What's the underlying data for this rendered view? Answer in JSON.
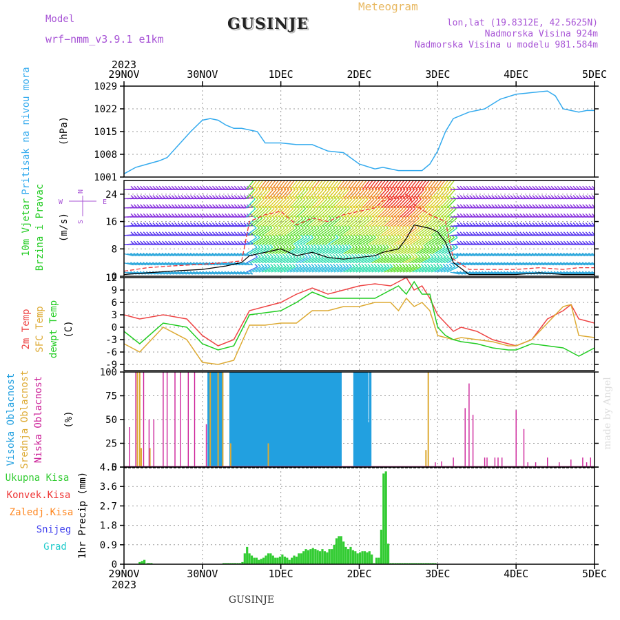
{
  "header": {
    "model_label": "Model",
    "model_name": "wrf−nmm_v3.9.1  e1km",
    "location_title": "GUSINJE",
    "meteogram_label": "Meteogram",
    "lonlat": "lon,lat (19.8312E, 42.5625N)",
    "altitude": "Nadmorska Visina 924m",
    "model_altitude": "Nadmorska Visina u modelu 981.584m",
    "footer_title": "GUSINJE",
    "credit": "made by Angel",
    "year": "2023",
    "x_tick_labels": [
      "29NOV",
      "30NOV",
      "1DEC",
      "2DEC",
      "3DEC",
      "4DEC",
      "5DEC"
    ]
  },
  "colors": {
    "pressure": "#33aaee",
    "temp2m": "#ee4444",
    "sfc_temp": "#ddaa33",
    "dewpt": "#22cc22",
    "high_cloud": "#22a0e0",
    "mid_cloud": "#ddaa33",
    "low_cloud": "#cc2299",
    "precip_total": "#33cc33",
    "conv": "#ee3333",
    "frozen": "#ff8822",
    "snow": "#4444ee",
    "hail": "#22cccc",
    "title_purple": "#a855d6",
    "meteogram": "#e8b860"
  },
  "chart_data": [
    {
      "type": "line",
      "panel": "pressure",
      "ylabel_1": "Pritisak na nivou mora",
      "ylabel_2": "(hPa)",
      "yticks": [
        1001,
        1008,
        1015,
        1022,
        1029
      ],
      "ylim": [
        1001,
        1029
      ],
      "xlim_days": [
        0,
        6
      ],
      "grid": true,
      "series": [
        {
          "x": [
            0,
            0.15,
            0.3,
            0.45,
            0.55,
            0.7,
            0.85,
            1.0,
            1.1,
            1.2,
            1.3,
            1.4,
            1.5,
            1.6,
            1.7,
            1.8,
            1.9,
            2.0,
            2.2,
            2.4,
            2.6,
            2.8,
            3.0,
            3.2,
            3.3,
            3.5,
            3.8,
            3.9,
            4.0,
            4.1,
            4.2,
            4.4,
            4.6,
            4.8,
            5.0,
            5.2,
            5.4,
            5.5,
            5.6,
            5.8,
            5.9,
            6.0
          ],
          "y": [
            1002,
            1004,
            1005,
            1006,
            1007,
            1011,
            1015,
            1018.5,
            1019,
            1018.5,
            1017,
            1016,
            1016,
            1015.5,
            1015,
            1011.5,
            1011.5,
            1011.5,
            1011,
            1011,
            1009,
            1008.5,
            1005,
            1003.5,
            1004,
            1003,
            1003,
            1005,
            1009,
            1015,
            1019,
            1021,
            1022,
            1025,
            1026.5,
            1027,
            1027.5,
            1026,
            1022,
            1021,
            1021.5,
            1021.5
          ]
        }
      ]
    },
    {
      "type": "line",
      "panel": "wind",
      "ylabel_1": "10m Vjetar",
      "ylabel_2": "Brzina i Pravac",
      "ylabel_3": "(m/s)",
      "compass": [
        "N",
        "E",
        "S",
        "W"
      ],
      "yticks": [
        0,
        8,
        16,
        24
      ],
      "ylim": [
        0,
        28
      ],
      "grid": true,
      "series": [
        {
          "name": "speed",
          "x": [
            0,
            0.3,
            0.6,
            1.0,
            1.3,
            1.5,
            1.6,
            1.8,
            2.0,
            2.2,
            2.4,
            2.6,
            2.8,
            3.0,
            3.2,
            3.3,
            3.5,
            3.6,
            3.7,
            3.9,
            4.0,
            4.1,
            4.2,
            4.4,
            4.6,
            4.8,
            5.0,
            5.3,
            5.6,
            5.8,
            6.0
          ],
          "y": [
            0.5,
            1,
            1.5,
            2,
            3,
            4,
            6,
            7,
            8,
            6,
            7,
            5.5,
            5,
            5.5,
            6,
            7,
            8,
            11,
            15,
            14,
            13,
            10,
            4,
            0.5,
            0.5,
            0.5,
            0.5,
            1,
            0.5,
            0.5,
            0.5
          ]
        },
        {
          "name": "gust",
          "x": [
            0,
            0.3,
            0.6,
            1.0,
            1.3,
            1.5,
            1.6,
            1.8,
            2.0,
            2.2,
            2.4,
            2.6,
            2.8,
            3.0,
            3.2,
            3.3,
            3.5,
            3.6,
            3.7,
            3.9,
            4.0,
            4.1,
            4.2,
            4.4,
            4.6,
            4.8,
            5.0,
            5.3,
            5.6,
            5.8,
            6.0
          ],
          "y": [
            1.5,
            2.5,
            3,
            3.5,
            4,
            4.5,
            16,
            18,
            19,
            15,
            17,
            16,
            18,
            19,
            20,
            22,
            23,
            24,
            21,
            18,
            17,
            16,
            5,
            2,
            2,
            2,
            2,
            2.5,
            2,
            2.5,
            2.5
          ]
        }
      ]
    },
    {
      "type": "line",
      "panel": "temperature",
      "ylabel_1": "2m Temp",
      "ylabel_2": "SFC Temp",
      "ylabel_3": "dewpt Temp",
      "ylabel_4": "(C)",
      "yticks": [
        -9,
        -6,
        -3,
        0,
        3,
        6,
        9,
        12
      ],
      "ylim": [
        -10.5,
        12
      ],
      "grid": true,
      "series": [
        {
          "name": "2m Temp",
          "x": [
            0,
            0.2,
            0.5,
            0.8,
            1.0,
            1.2,
            1.4,
            1.6,
            1.8,
            2.0,
            2.2,
            2.4,
            2.6,
            2.8,
            3.0,
            3.2,
            3.4,
            3.5,
            3.6,
            3.7,
            3.8,
            3.9,
            4.0,
            4.1,
            4.2,
            4.3,
            4.5,
            4.7,
            4.9,
            5.0,
            5.2,
            5.4,
            5.6,
            5.7,
            5.8,
            6.0
          ],
          "y": [
            3,
            2,
            3,
            2,
            -2,
            -4.5,
            -3,
            4,
            5,
            6,
            8,
            9.5,
            8,
            9,
            10,
            10.5,
            10,
            11,
            12,
            9,
            10,
            7,
            3,
            1,
            -1,
            0,
            -1,
            -3,
            -4,
            -4.5,
            -3,
            2,
            4,
            5.5,
            2,
            1
          ]
        },
        {
          "name": "SFC Temp",
          "x": [
            0,
            0.2,
            0.5,
            0.8,
            1.0,
            1.2,
            1.4,
            1.6,
            1.8,
            2.0,
            2.2,
            2.4,
            2.6,
            2.8,
            3.0,
            3.2,
            3.4,
            3.5,
            3.6,
            3.7,
            3.8,
            3.9,
            4.0,
            4.1,
            4.2,
            4.3,
            4.5,
            4.7,
            4.9,
            5.0,
            5.2,
            5.4,
            5.6,
            5.7,
            5.8,
            6.0
          ],
          "y": [
            -4,
            -6,
            0,
            -3,
            -8.5,
            -9,
            -8,
            0.5,
            0.5,
            1,
            1,
            4,
            4,
            5,
            5,
            6,
            6,
            4,
            7,
            5,
            6,
            4,
            -2,
            -2.5,
            -3,
            -2.5,
            -3,
            -3.5,
            -4.5,
            -4.5,
            -3,
            1,
            5,
            5.5,
            -2,
            -2.5
          ]
        },
        {
          "name": "dewpt Temp",
          "x": [
            0,
            0.2,
            0.5,
            0.8,
            1.0,
            1.2,
            1.4,
            1.6,
            1.8,
            2.0,
            2.2,
            2.4,
            2.6,
            2.8,
            3.0,
            3.2,
            3.4,
            3.5,
            3.6,
            3.7,
            3.8,
            3.9,
            4.0,
            4.1,
            4.2,
            4.3,
            4.5,
            4.7,
            4.9,
            5.0,
            5.2,
            5.4,
            5.6,
            5.7,
            5.8,
            6.0
          ],
          "y": [
            -1,
            -4,
            1,
            0,
            -4,
            -5.5,
            -4.5,
            3,
            3.5,
            4,
            6,
            8.5,
            7,
            7,
            7,
            7,
            9,
            10,
            8,
            11,
            8,
            8,
            0,
            -2,
            -3,
            -3.5,
            -4,
            -5,
            -5.5,
            -5.5,
            -4,
            -4.5,
            -5,
            -6,
            -7,
            -5
          ]
        }
      ]
    },
    {
      "type": "bar",
      "panel": "clouds",
      "ylabel_1": "Visoka Oblacnost",
      "ylabel_2": "Srednja Oblacnost",
      "ylabel_3": "Niska Oblacnost",
      "ylabel_4": "(%)",
      "yticks": [
        0,
        25,
        50,
        75,
        100
      ],
      "ylim": [
        0,
        100
      ],
      "grid": true,
      "series": [
        {
          "name": "Visoka Oblacnost",
          "x": [
            1.08,
            1.1,
            1.12,
            1.14,
            1.16,
            1.18,
            1.2,
            1.22,
            1.24,
            1.36,
            1.38,
            1.4,
            1.42,
            1.44,
            1.46,
            1.48,
            1.5,
            1.52,
            1.54,
            1.56,
            1.58,
            1.6,
            1.62,
            1.64,
            1.66,
            1.68,
            1.7,
            1.72,
            1.74,
            1.76,
            1.78,
            1.8,
            1.82,
            1.84,
            1.86,
            1.88,
            1.9,
            1.92,
            1.94,
            1.96,
            1.98,
            2.0,
            2.02,
            2.04,
            2.06,
            2.08,
            2.1,
            2.12,
            2.14,
            2.16,
            2.18,
            2.2,
            2.22,
            2.24,
            2.26,
            2.28,
            2.3,
            2.32,
            2.34,
            2.36,
            2.38,
            2.4,
            2.42,
            2.44,
            2.46,
            2.48,
            2.5,
            2.52,
            2.54,
            2.56,
            2.58,
            2.6,
            2.62,
            2.64,
            2.66,
            2.68,
            2.7,
            2.72,
            2.74,
            2.76,
            2.94,
            2.96,
            2.98,
            3.0,
            3.02,
            3.04,
            3.06,
            3.08,
            3.1,
            3.12,
            3.14
          ],
          "values": [
            100,
            100,
            100,
            100,
            100,
            100,
            100,
            100,
            100,
            100,
            100,
            100,
            100,
            100,
            100,
            100,
            100,
            100,
            100,
            100,
            100,
            100,
            100,
            100,
            100,
            100,
            100,
            100,
            100,
            100,
            100,
            100,
            100,
            100,
            100,
            100,
            100,
            100,
            100,
            100,
            100,
            100,
            100,
            100,
            100,
            100,
            100,
            100,
            100,
            100,
            100,
            100,
            100,
            100,
            100,
            100,
            100,
            100,
            100,
            100,
            100,
            100,
            100,
            100,
            100,
            100,
            100,
            100,
            100,
            100,
            100,
            100,
            100,
            100,
            100,
            100,
            100,
            100,
            100,
            100,
            100,
            100,
            100,
            100,
            100,
            100,
            100,
            100,
            100,
            47,
            100
          ]
        },
        {
          "name": "Srednja Oblacnost",
          "x": [
            0.17,
            0.2,
            0.22,
            0.33,
            1.1,
            1.2,
            1.26,
            1.36,
            1.84,
            3.85,
            3.88
          ],
          "values": [
            100,
            100,
            20,
            20,
            100,
            100,
            100,
            25,
            25,
            18,
            100
          ]
        },
        {
          "name": "Niska Oblacnost",
          "x": [
            0.07,
            0.15,
            0.25,
            0.32,
            0.38,
            0.5,
            0.55,
            0.65,
            0.72,
            0.82,
            0.9,
            1.05,
            3.97,
            4.05,
            4.2,
            4.35,
            4.4,
            4.45,
            4.6,
            4.63,
            4.73,
            4.77,
            4.82,
            5.0,
            5.1,
            5.15,
            5.25,
            5.4,
            5.55,
            5.7,
            5.85,
            5.9,
            5.95
          ],
          "values": [
            42,
            100,
            100,
            50,
            50,
            100,
            100,
            100,
            100,
            100,
            100,
            45,
            5,
            6,
            10,
            62,
            88,
            55,
            10,
            10,
            10,
            10,
            10,
            60,
            40,
            5,
            5,
            10,
            5,
            8,
            10,
            5,
            10
          ]
        }
      ]
    },
    {
      "type": "bar",
      "panel": "precipitation",
      "legend": [
        "Ukupna Kisa",
        "Konvek.Kisa",
        "Zaledj.Kisa",
        "Snijeg",
        "Grad"
      ],
      "ylabel": "1hr Precip (mm)",
      "yticks": [
        0,
        0.9,
        1.8,
        2.7,
        3.6,
        4.5
      ],
      "ylim": [
        0,
        4.5
      ],
      "grid": true,
      "series": [
        {
          "name": "Ukupna Kisa",
          "x": [
            0.2,
            0.23,
            0.26,
            0.3,
            0.32,
            0.35,
            1.27,
            1.3,
            1.33,
            1.36,
            1.39,
            1.42,
            1.45,
            1.48,
            1.51,
            1.54,
            1.57,
            1.6,
            1.63,
            1.66,
            1.69,
            1.72,
            1.75,
            1.78,
            1.81,
            1.84,
            1.87,
            1.9,
            1.93,
            1.96,
            1.99,
            2.02,
            2.05,
            2.08,
            2.11,
            2.14,
            2.17,
            2.2,
            2.23,
            2.26,
            2.29,
            2.32,
            2.35,
            2.38,
            2.41,
            2.44,
            2.47,
            2.5,
            2.53,
            2.56,
            2.59,
            2.62,
            2.65,
            2.68,
            2.71,
            2.74,
            2.77,
            2.8,
            2.83,
            2.86,
            2.89,
            2.92,
            2.95,
            2.98,
            3.01,
            3.04,
            3.07,
            3.1,
            3.13,
            3.16,
            3.19,
            3.22,
            3.25,
            3.28,
            3.31,
            3.34,
            3.37,
            3.4,
            3.43,
            3.46,
            3.49,
            3.52,
            3.55,
            3.58,
            3.61,
            3.64,
            3.67,
            3.7,
            3.73,
            3.76,
            3.79,
            3.82,
            3.85,
            3.88,
            3.91,
            3.94,
            3.97
          ],
          "values": [
            0.1,
            0.15,
            0.2,
            0.05,
            0.05,
            0.05,
            0.05,
            0.05,
            0.05,
            0.05,
            0.05,
            0.05,
            0.05,
            0.05,
            0.1,
            0.5,
            0.8,
            0.5,
            0.4,
            0.3,
            0.3,
            0.2,
            0.25,
            0.3,
            0.4,
            0.5,
            0.5,
            0.4,
            0.3,
            0.3,
            0.35,
            0.45,
            0.35,
            0.3,
            0.2,
            0.3,
            0.4,
            0.35,
            0.5,
            0.5,
            0.6,
            0.7,
            0.65,
            0.7,
            0.75,
            0.7,
            0.65,
            0.6,
            0.7,
            0.6,
            0.55,
            0.7,
            0.7,
            0.9,
            1.2,
            1.3,
            1.3,
            1.05,
            0.8,
            0.7,
            0.8,
            0.65,
            0.6,
            0.5,
            0.55,
            0.6,
            0.6,
            0.55,
            0.6,
            0.45,
            0.05,
            0.3,
            0.3,
            1.6,
            4.2,
            4.3,
            0.95,
            0.05,
            0.05,
            0.05,
            0.05,
            0.05,
            0.05,
            0.05,
            0.05,
            0.05,
            0.05,
            0.05,
            0.05,
            0.05,
            0.05,
            0.05,
            0.05,
            0.05,
            0.05,
            0.05,
            0.05
          ]
        }
      ]
    }
  ]
}
